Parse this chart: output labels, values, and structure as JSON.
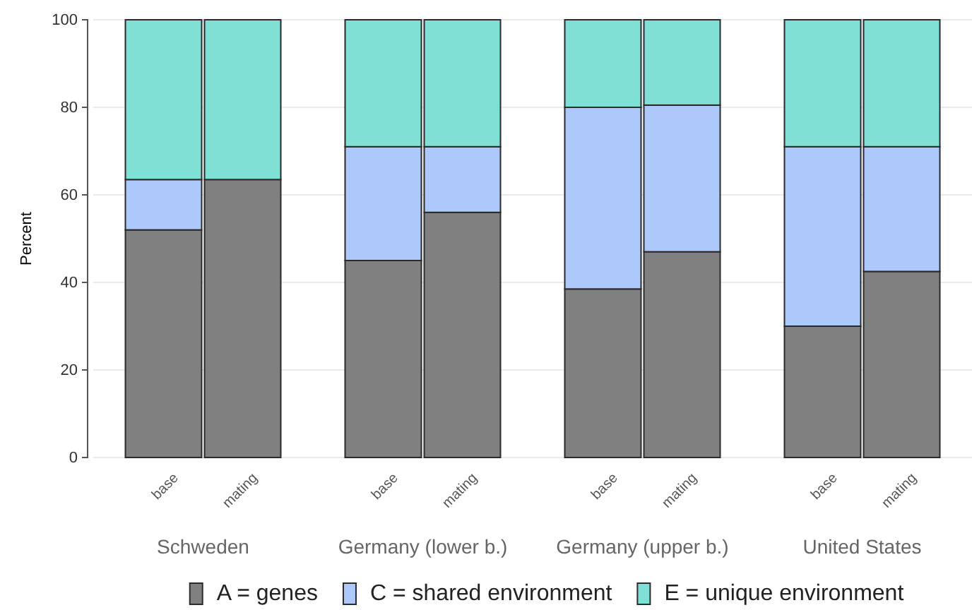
{
  "chart_data": {
    "type": "bar",
    "stacked": true,
    "ylabel": "Percent",
    "categories": [
      "base",
      "mating",
      "base",
      "mating",
      "base",
      "mating",
      "base",
      "mating"
    ],
    "annotations": [
      "Schweden",
      "Germany (lower b.)",
      "Germany (upper b.)",
      "United States"
    ],
    "series": [
      {
        "name": "A = genes",
        "color": "#808080",
        "values": [
          52,
          63.5,
          45,
          56,
          38.5,
          47,
          30,
          42.5
        ]
      },
      {
        "name": "C = shared environment",
        "color": "#adc8fb",
        "values": [
          11.5,
          0,
          26,
          15,
          41.5,
          33.5,
          41,
          28.5
        ]
      },
      {
        "name": "E = unique environment",
        "color": "#80e0d6",
        "values": [
          36.5,
          36.5,
          29,
          29,
          20,
          19.5,
          29,
          29
        ]
      }
    ],
    "ylim": [
      0,
      100
    ],
    "yticks": [
      0,
      20,
      40,
      60,
      80,
      100
    ],
    "grid": "y",
    "legend": "bottom"
  }
}
